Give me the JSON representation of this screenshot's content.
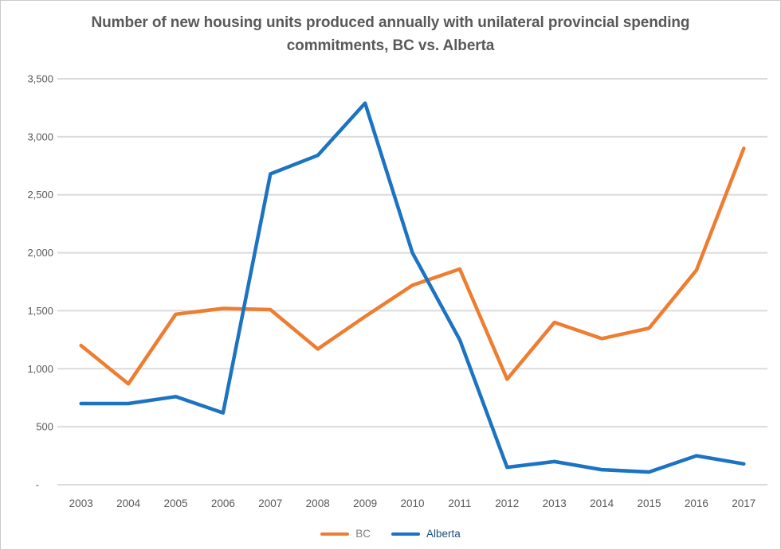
{
  "title": "Number of new housing units produced annually with unilateral provincial spending commitments, BC vs. Alberta",
  "colors": {
    "bc_line": "#ED7D31",
    "alberta_line": "#1B73C2",
    "title_text": "#595959",
    "axis_label": "#595959",
    "gridline": "#DBDBDB",
    "page_border": "#C9C9C9",
    "legend_bc_text": "#7F7F7F",
    "legend_alberta_text": "#1F4E79"
  },
  "chart_data": {
    "type": "line",
    "title": "Number of new housing units produced annually with unilateral provincial spending commitments, BC vs. Alberta",
    "categories": [
      "2003",
      "2004",
      "2005",
      "2006",
      "2007",
      "2008",
      "2009",
      "2010",
      "2011",
      "2012",
      "2013",
      "2014",
      "2015",
      "2016",
      "2017"
    ],
    "series": [
      {
        "name": "BC",
        "color": "#ED7D31",
        "values": [
          1200,
          870,
          1470,
          1520,
          1510,
          1170,
          1450,
          1720,
          1860,
          910,
          1400,
          1260,
          1350,
          1850,
          2900
        ]
      },
      {
        "name": "Alberta",
        "color": "#1B73C2",
        "values": [
          700,
          700,
          760,
          620,
          2680,
          2840,
          3290,
          2000,
          1250,
          150,
          200,
          130,
          110,
          250,
          180
        ]
      }
    ],
    "xlabel": "",
    "ylabel": "",
    "ylim": [
      0,
      3500
    ],
    "ytick_step": 500,
    "ytick_labels": [
      "-",
      "500",
      "1,000",
      "1,500",
      "2,000",
      "2,500",
      "3,000",
      "3,500"
    ],
    "grid": true,
    "legend_position": "bottom"
  },
  "legend": {
    "items": [
      {
        "id": "bc",
        "label": "BC",
        "swatch_color": "#ED7D31",
        "label_color": "#7F7F7F"
      },
      {
        "id": "alberta",
        "label": "Alberta",
        "swatch_color": "#1B73C2",
        "label_color": "#1F4E79"
      }
    ]
  }
}
